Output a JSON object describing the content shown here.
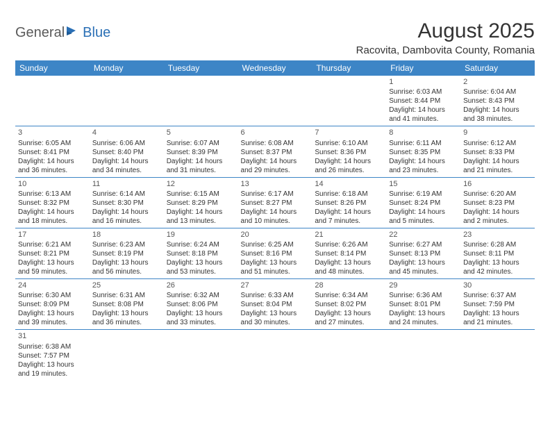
{
  "logo": {
    "part1": "General",
    "part2": "Blue"
  },
  "title": "August 2025",
  "location": "Racovita, Dambovita County, Romania",
  "colors": {
    "header_bg": "#3d85c6",
    "header_text": "#ffffff",
    "border": "#3d85c6",
    "logo_accent": "#2a6fb5",
    "text": "#333333"
  },
  "day_headers": [
    "Sunday",
    "Monday",
    "Tuesday",
    "Wednesday",
    "Thursday",
    "Friday",
    "Saturday"
  ],
  "weeks": [
    [
      null,
      null,
      null,
      null,
      null,
      {
        "n": "1",
        "sr": "Sunrise: 6:03 AM",
        "ss": "Sunset: 8:44 PM",
        "dl": "Daylight: 14 hours and 41 minutes."
      },
      {
        "n": "2",
        "sr": "Sunrise: 6:04 AM",
        "ss": "Sunset: 8:43 PM",
        "dl": "Daylight: 14 hours and 38 minutes."
      }
    ],
    [
      {
        "n": "3",
        "sr": "Sunrise: 6:05 AM",
        "ss": "Sunset: 8:41 PM",
        "dl": "Daylight: 14 hours and 36 minutes."
      },
      {
        "n": "4",
        "sr": "Sunrise: 6:06 AM",
        "ss": "Sunset: 8:40 PM",
        "dl": "Daylight: 14 hours and 34 minutes."
      },
      {
        "n": "5",
        "sr": "Sunrise: 6:07 AM",
        "ss": "Sunset: 8:39 PM",
        "dl": "Daylight: 14 hours and 31 minutes."
      },
      {
        "n": "6",
        "sr": "Sunrise: 6:08 AM",
        "ss": "Sunset: 8:37 PM",
        "dl": "Daylight: 14 hours and 29 minutes."
      },
      {
        "n": "7",
        "sr": "Sunrise: 6:10 AM",
        "ss": "Sunset: 8:36 PM",
        "dl": "Daylight: 14 hours and 26 minutes."
      },
      {
        "n": "8",
        "sr": "Sunrise: 6:11 AM",
        "ss": "Sunset: 8:35 PM",
        "dl": "Daylight: 14 hours and 23 minutes."
      },
      {
        "n": "9",
        "sr": "Sunrise: 6:12 AM",
        "ss": "Sunset: 8:33 PM",
        "dl": "Daylight: 14 hours and 21 minutes."
      }
    ],
    [
      {
        "n": "10",
        "sr": "Sunrise: 6:13 AM",
        "ss": "Sunset: 8:32 PM",
        "dl": "Daylight: 14 hours and 18 minutes."
      },
      {
        "n": "11",
        "sr": "Sunrise: 6:14 AM",
        "ss": "Sunset: 8:30 PM",
        "dl": "Daylight: 14 hours and 16 minutes."
      },
      {
        "n": "12",
        "sr": "Sunrise: 6:15 AM",
        "ss": "Sunset: 8:29 PM",
        "dl": "Daylight: 14 hours and 13 minutes."
      },
      {
        "n": "13",
        "sr": "Sunrise: 6:17 AM",
        "ss": "Sunset: 8:27 PM",
        "dl": "Daylight: 14 hours and 10 minutes."
      },
      {
        "n": "14",
        "sr": "Sunrise: 6:18 AM",
        "ss": "Sunset: 8:26 PM",
        "dl": "Daylight: 14 hours and 7 minutes."
      },
      {
        "n": "15",
        "sr": "Sunrise: 6:19 AM",
        "ss": "Sunset: 8:24 PM",
        "dl": "Daylight: 14 hours and 5 minutes."
      },
      {
        "n": "16",
        "sr": "Sunrise: 6:20 AM",
        "ss": "Sunset: 8:23 PM",
        "dl": "Daylight: 14 hours and 2 minutes."
      }
    ],
    [
      {
        "n": "17",
        "sr": "Sunrise: 6:21 AM",
        "ss": "Sunset: 8:21 PM",
        "dl": "Daylight: 13 hours and 59 minutes."
      },
      {
        "n": "18",
        "sr": "Sunrise: 6:23 AM",
        "ss": "Sunset: 8:19 PM",
        "dl": "Daylight: 13 hours and 56 minutes."
      },
      {
        "n": "19",
        "sr": "Sunrise: 6:24 AM",
        "ss": "Sunset: 8:18 PM",
        "dl": "Daylight: 13 hours and 53 minutes."
      },
      {
        "n": "20",
        "sr": "Sunrise: 6:25 AM",
        "ss": "Sunset: 8:16 PM",
        "dl": "Daylight: 13 hours and 51 minutes."
      },
      {
        "n": "21",
        "sr": "Sunrise: 6:26 AM",
        "ss": "Sunset: 8:14 PM",
        "dl": "Daylight: 13 hours and 48 minutes."
      },
      {
        "n": "22",
        "sr": "Sunrise: 6:27 AM",
        "ss": "Sunset: 8:13 PM",
        "dl": "Daylight: 13 hours and 45 minutes."
      },
      {
        "n": "23",
        "sr": "Sunrise: 6:28 AM",
        "ss": "Sunset: 8:11 PM",
        "dl": "Daylight: 13 hours and 42 minutes."
      }
    ],
    [
      {
        "n": "24",
        "sr": "Sunrise: 6:30 AM",
        "ss": "Sunset: 8:09 PM",
        "dl": "Daylight: 13 hours and 39 minutes."
      },
      {
        "n": "25",
        "sr": "Sunrise: 6:31 AM",
        "ss": "Sunset: 8:08 PM",
        "dl": "Daylight: 13 hours and 36 minutes."
      },
      {
        "n": "26",
        "sr": "Sunrise: 6:32 AM",
        "ss": "Sunset: 8:06 PM",
        "dl": "Daylight: 13 hours and 33 minutes."
      },
      {
        "n": "27",
        "sr": "Sunrise: 6:33 AM",
        "ss": "Sunset: 8:04 PM",
        "dl": "Daylight: 13 hours and 30 minutes."
      },
      {
        "n": "28",
        "sr": "Sunrise: 6:34 AM",
        "ss": "Sunset: 8:02 PM",
        "dl": "Daylight: 13 hours and 27 minutes."
      },
      {
        "n": "29",
        "sr": "Sunrise: 6:36 AM",
        "ss": "Sunset: 8:01 PM",
        "dl": "Daylight: 13 hours and 24 minutes."
      },
      {
        "n": "30",
        "sr": "Sunrise: 6:37 AM",
        "ss": "Sunset: 7:59 PM",
        "dl": "Daylight: 13 hours and 21 minutes."
      }
    ],
    [
      {
        "n": "31",
        "sr": "Sunrise: 6:38 AM",
        "ss": "Sunset: 7:57 PM",
        "dl": "Daylight: 13 hours and 19 minutes."
      },
      null,
      null,
      null,
      null,
      null,
      null
    ]
  ]
}
